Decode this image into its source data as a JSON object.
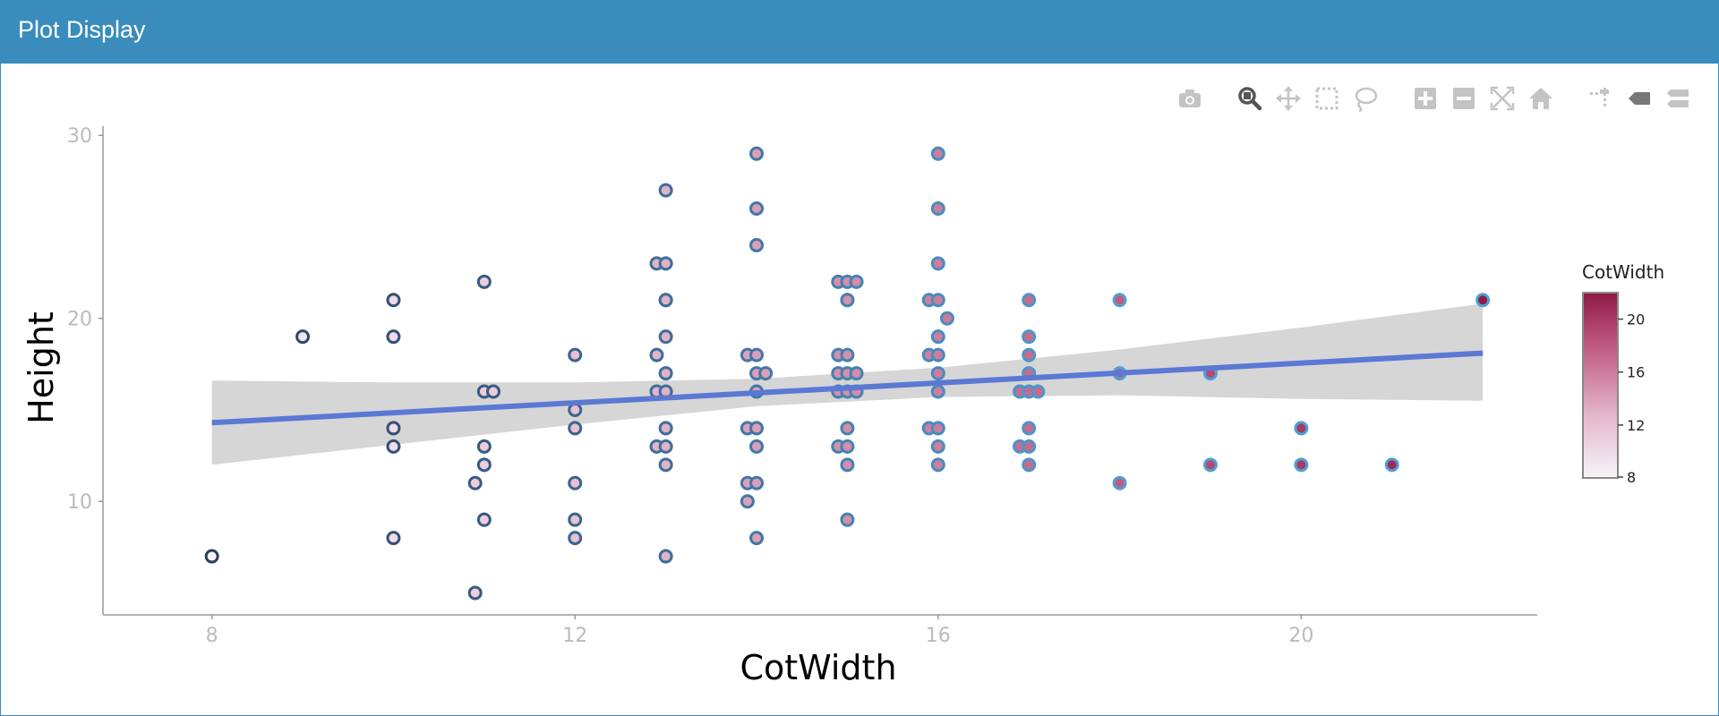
{
  "panel": {
    "title": "Plot Display"
  },
  "modebar": [
    {
      "name": "camera-icon",
      "title": "Download plot as a png"
    },
    {
      "name": "zoom-icon",
      "title": "Zoom",
      "active": true
    },
    {
      "name": "pan-icon",
      "title": "Pan"
    },
    {
      "name": "box-select-icon",
      "title": "Box Select"
    },
    {
      "name": "lasso-select-icon",
      "title": "Lasso Select"
    },
    {
      "name": "zoom-in-icon",
      "title": "Zoom in"
    },
    {
      "name": "zoom-out-icon",
      "title": "Zoom out"
    },
    {
      "name": "autoscale-icon",
      "title": "Autoscale"
    },
    {
      "name": "reset-axes-icon",
      "title": "Reset axes"
    },
    {
      "name": "spike-lines-icon",
      "title": "Toggle Spike Lines"
    },
    {
      "name": "hover-closest-icon",
      "title": "Show closest data on hover"
    },
    {
      "name": "hover-compare-icon",
      "title": "Compare data on hover"
    }
  ],
  "chart_data": {
    "type": "scatter",
    "title": "",
    "xlabel": "CotWidth",
    "ylabel": "Height",
    "xlim": [
      6.8,
      22.6
    ],
    "ylim": [
      3.8,
      30.5
    ],
    "xticks": [
      8,
      12,
      16,
      20
    ],
    "yticks": [
      10,
      20,
      30
    ],
    "grid": false,
    "color_variable": "CotWidth",
    "colorbar": {
      "title": "CotWidth",
      "ticks": [
        8,
        12,
        16,
        20
      ],
      "range": [
        8,
        22
      ],
      "low": "#f7f4f9",
      "high": "#8e1a45",
      "placement": "right"
    },
    "points": [
      [
        8,
        7
      ],
      [
        9,
        19
      ],
      [
        10,
        21
      ],
      [
        10,
        19
      ],
      [
        10,
        14
      ],
      [
        10,
        13
      ],
      [
        10,
        8
      ],
      [
        11,
        22
      ],
      [
        11,
        16
      ],
      [
        11.1,
        16
      ],
      [
        11,
        13
      ],
      [
        11,
        12
      ],
      [
        10.9,
        11
      ],
      [
        11,
        9
      ],
      [
        10.9,
        5
      ],
      [
        12,
        18
      ],
      [
        12,
        15
      ],
      [
        12,
        14
      ],
      [
        12,
        11
      ],
      [
        12,
        9
      ],
      [
        12,
        8
      ],
      [
        13,
        27
      ],
      [
        12.9,
        23
      ],
      [
        13,
        23
      ],
      [
        13,
        21
      ],
      [
        13,
        21
      ],
      [
        13,
        19
      ],
      [
        12.9,
        18
      ],
      [
        13,
        17
      ],
      [
        12.9,
        16
      ],
      [
        13,
        16
      ],
      [
        13,
        14
      ],
      [
        12.9,
        13
      ],
      [
        13,
        13
      ],
      [
        13,
        12
      ],
      [
        13,
        7
      ],
      [
        14,
        29
      ],
      [
        14,
        26
      ],
      [
        14,
        24
      ],
      [
        13.9,
        18
      ],
      [
        14,
        18
      ],
      [
        14,
        17
      ],
      [
        14.1,
        17
      ],
      [
        14,
        16
      ],
      [
        13.9,
        14
      ],
      [
        14,
        14
      ],
      [
        14,
        13
      ],
      [
        13.9,
        11
      ],
      [
        14,
        11
      ],
      [
        13.9,
        10
      ],
      [
        14,
        8
      ],
      [
        14.9,
        22
      ],
      [
        15,
        22
      ],
      [
        15.1,
        22
      ],
      [
        15,
        21
      ],
      [
        15,
        21
      ],
      [
        14.9,
        18
      ],
      [
        15,
        18
      ],
      [
        14.9,
        17
      ],
      [
        15,
        17
      ],
      [
        15.1,
        17
      ],
      [
        14.9,
        16
      ],
      [
        15,
        16
      ],
      [
        15.1,
        16
      ],
      [
        15,
        14
      ],
      [
        14.9,
        13
      ],
      [
        15,
        13
      ],
      [
        15,
        12
      ],
      [
        15,
        9
      ],
      [
        16,
        29
      ],
      [
        16,
        26
      ],
      [
        16,
        23
      ],
      [
        15.9,
        21
      ],
      [
        16,
        21
      ],
      [
        16.1,
        20
      ],
      [
        16,
        19
      ],
      [
        15.9,
        18
      ],
      [
        16,
        18
      ],
      [
        16,
        17
      ],
      [
        16,
        16
      ],
      [
        15.9,
        14
      ],
      [
        16,
        14
      ],
      [
        16,
        13
      ],
      [
        16,
        12
      ],
      [
        17,
        21
      ],
      [
        17,
        19
      ],
      [
        17,
        18
      ],
      [
        17,
        17
      ],
      [
        16.9,
        16
      ],
      [
        17,
        16
      ],
      [
        17.1,
        16
      ],
      [
        17,
        14
      ],
      [
        16.9,
        13
      ],
      [
        17,
        13
      ],
      [
        17,
        12
      ],
      [
        18,
        21
      ],
      [
        18,
        17
      ],
      [
        18,
        11
      ],
      [
        19,
        17
      ],
      [
        19,
        12
      ],
      [
        20,
        14
      ],
      [
        20,
        12
      ],
      [
        21,
        12
      ],
      [
        22,
        21
      ]
    ],
    "trend_line": {
      "x": [
        8,
        22
      ],
      "y": [
        14.3,
        18.1
      ],
      "color": "#5b78d4"
    },
    "confidence_band": [
      {
        "x": 8,
        "lower": 12.0,
        "upper": 16.6
      },
      {
        "x": 10,
        "lower": 13.1,
        "upper": 16.5
      },
      {
        "x": 12,
        "lower": 14.2,
        "upper": 16.5
      },
      {
        "x": 14,
        "lower": 15.2,
        "upper": 16.7
      },
      {
        "x": 16,
        "lower": 15.7,
        "upper": 17.3
      },
      {
        "x": 18,
        "lower": 15.8,
        "upper": 18.3
      },
      {
        "x": 20,
        "lower": 15.6,
        "upper": 19.5
      },
      {
        "x": 22,
        "lower": 15.5,
        "upper": 20.8
      }
    ],
    "marker": {
      "outline_dark": "#2d3e5e",
      "outline_light": "#4f9fd6",
      "band_fill": "#d6d6d6"
    }
  }
}
